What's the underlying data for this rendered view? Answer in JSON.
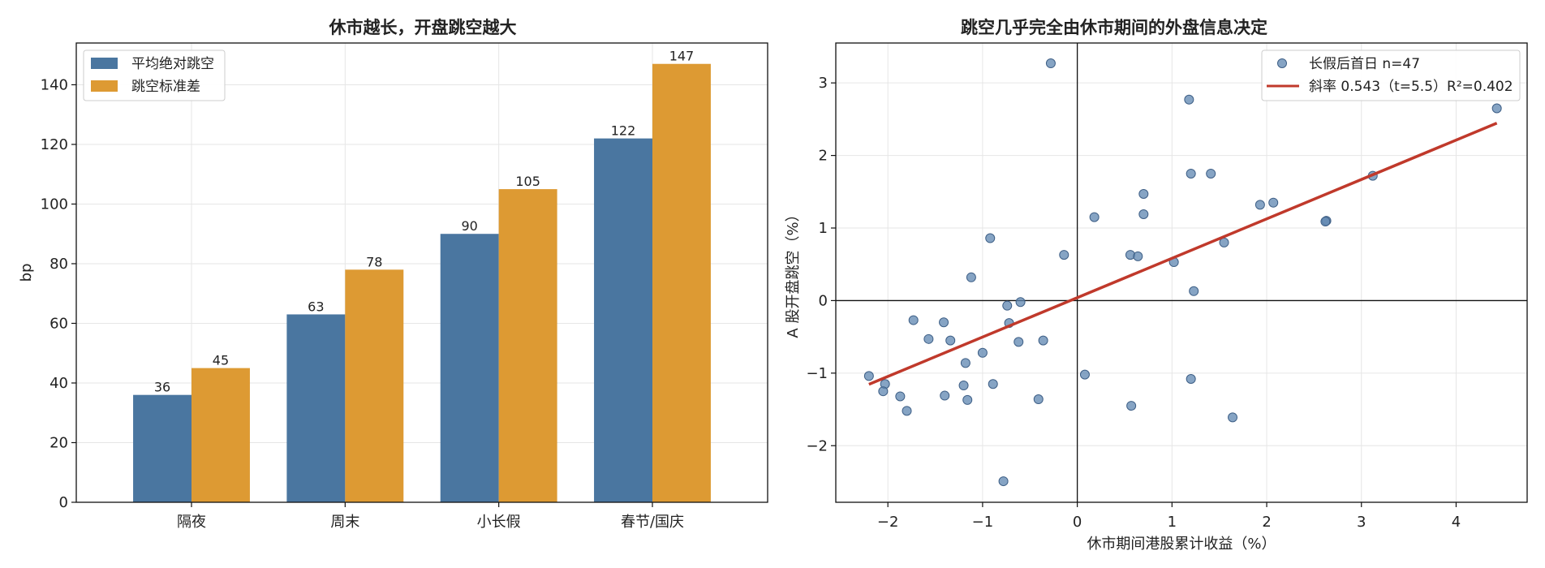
{
  "colors": {
    "series_mean": "#4a76a0",
    "series_std": "#dd9a33",
    "scatter": "#5e86b0",
    "fit_line": "#c0392b",
    "grid": "#e6e6e6",
    "axis": "#111111"
  },
  "chart_data": [
    {
      "type": "bar",
      "title": "休市越长，开盘跳空越大",
      "xlabel": "",
      "ylabel": "bp",
      "categories": [
        "隔夜",
        "周末",
        "小长假",
        "春节/国庆"
      ],
      "series": [
        {
          "name": "平均绝对跳空",
          "values": [
            36,
            63,
            90,
            122
          ]
        },
        {
          "name": "跳空标准差",
          "values": [
            45,
            78,
            105,
            147
          ]
        }
      ],
      "ylim": [
        0,
        154
      ],
      "yticks": [
        0,
        20,
        40,
        60,
        80,
        100,
        120,
        140
      ],
      "grid": true,
      "legend": "top-left"
    },
    {
      "type": "scatter",
      "title": "跳空几乎完全由休市期间的外盘信息决定",
      "xlabel": "休市期间港股累计收益（%）",
      "ylabel": "A 股开盘跳空（%）",
      "xlim": [
        -2.55,
        4.75
      ],
      "ylim": [
        -2.78,
        3.55
      ],
      "xticks": [
        -2,
        -1,
        0,
        1,
        2,
        3,
        4
      ],
      "yticks": [
        -2,
        -1,
        0,
        1,
        2,
        3
      ],
      "tick_labels_x": [
        "−2",
        "−1",
        "0",
        "1",
        "2",
        "3",
        "4"
      ],
      "tick_labels_y": [
        "−2",
        "−1",
        "0",
        "1",
        "2",
        "3"
      ],
      "grid": true,
      "legend": "top-right",
      "series": [
        {
          "name": "长假后首日 n=47",
          "points": [
            [
              -0.28,
              3.27
            ],
            [
              1.18,
              2.77
            ],
            [
              4.43,
              2.65
            ],
            [
              1.2,
              1.75
            ],
            [
              1.41,
              1.75
            ],
            [
              3.12,
              1.72
            ],
            [
              0.7,
              1.47
            ],
            [
              1.93,
              1.32
            ],
            [
              2.07,
              1.35
            ],
            [
              0.18,
              1.15
            ],
            [
              0.7,
              1.19
            ],
            [
              2.63,
              1.1
            ],
            [
              2.62,
              1.09
            ],
            [
              -0.92,
              0.86
            ],
            [
              1.55,
              0.8
            ],
            [
              -0.14,
              0.63
            ],
            [
              0.56,
              0.63
            ],
            [
              0.64,
              0.61
            ],
            [
              1.02,
              0.53
            ],
            [
              -1.12,
              0.32
            ],
            [
              1.23,
              0.13
            ],
            [
              -0.6,
              -0.02
            ],
            [
              -0.74,
              -0.07
            ],
            [
              -1.73,
              -0.27
            ],
            [
              -1.41,
              -0.3
            ],
            [
              -0.72,
              -0.31
            ],
            [
              -1.57,
              -0.53
            ],
            [
              -1.34,
              -0.55
            ],
            [
              -0.62,
              -0.57
            ],
            [
              -0.36,
              -0.55
            ],
            [
              -1.0,
              -0.72
            ],
            [
              -1.18,
              -0.86
            ],
            [
              -2.2,
              -1.04
            ],
            [
              0.08,
              -1.02
            ],
            [
              1.2,
              -1.08
            ],
            [
              -2.03,
              -1.15
            ],
            [
              -1.2,
              -1.17
            ],
            [
              -0.89,
              -1.15
            ],
            [
              -2.05,
              -1.25
            ],
            [
              -1.4,
              -1.31
            ],
            [
              -1.87,
              -1.32
            ],
            [
              -1.16,
              -1.37
            ],
            [
              -0.41,
              -1.36
            ],
            [
              0.57,
              -1.45
            ],
            [
              -1.8,
              -1.52
            ],
            [
              1.64,
              -1.61
            ],
            [
              -0.78,
              -2.49
            ]
          ]
        }
      ],
      "fit": {
        "name": "斜率 0.543（t=5.5）R²=0.402",
        "slope": 0.543,
        "intercept": 0.04,
        "x_range": [
          -2.2,
          4.43
        ]
      }
    }
  ]
}
